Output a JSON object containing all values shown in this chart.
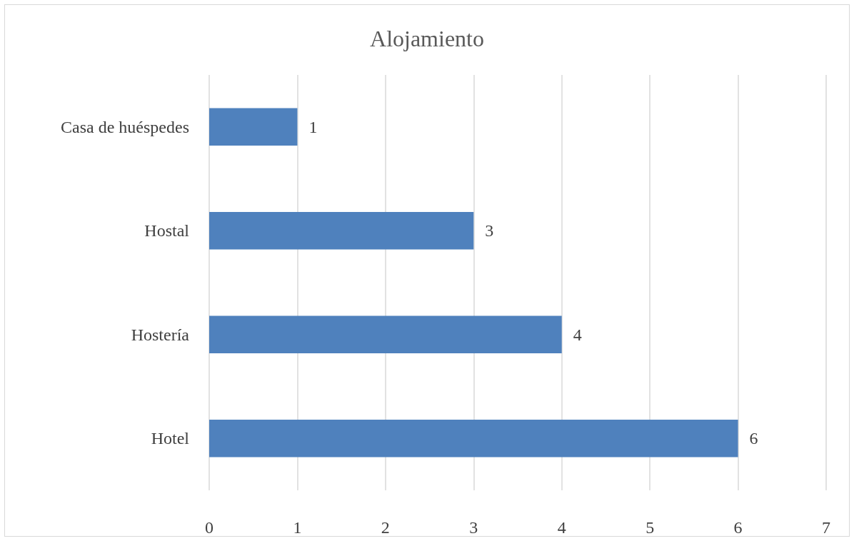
{
  "chart_data": {
    "type": "bar",
    "orientation": "horizontal",
    "title": "Alojamiento",
    "categories": [
      "Casa de huéspedes",
      "Hostal",
      "Hostería",
      "Hotel"
    ],
    "values": [
      1,
      3,
      4,
      6
    ],
    "color": "#4f81bd",
    "xlim": [
      0,
      7
    ],
    "xticks": [
      0,
      1,
      2,
      3,
      4,
      5,
      6,
      7
    ],
    "grid": "x",
    "data_labels": true
  }
}
